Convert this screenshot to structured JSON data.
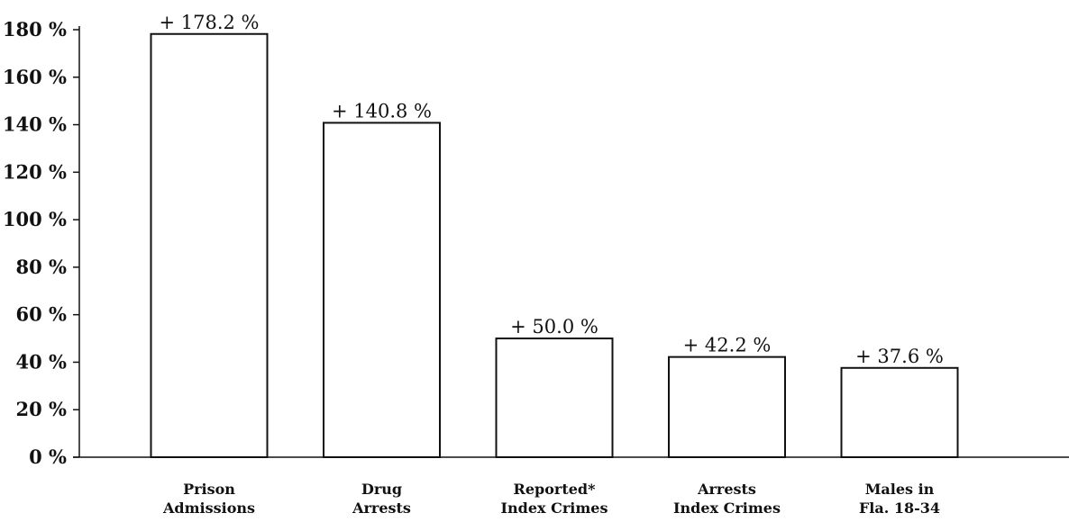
{
  "chart_data": {
    "type": "bar",
    "title": "",
    "xlabel": "",
    "ylabel": "",
    "ylim": [
      0,
      180
    ],
    "y_ticks": [
      0,
      20,
      40,
      60,
      80,
      100,
      120,
      140,
      160,
      180
    ],
    "y_tick_labels": [
      "0 %",
      "20 %",
      "40 %",
      "60 %",
      "80 %",
      "100 %",
      "120 %",
      "140 %",
      "160 %",
      "180 %"
    ],
    "categories": [
      [
        "Prison",
        "Admissions"
      ],
      [
        "Drug",
        "Arrests"
      ],
      [
        "Reported*",
        "Index Crimes"
      ],
      [
        "Arrests",
        "Index Crimes"
      ],
      [
        "Males in",
        "Fla. 18-34"
      ]
    ],
    "values": [
      178.2,
      140.8,
      50.0,
      42.2,
      37.6
    ],
    "data_labels": [
      "+ 178.2 %",
      "+ 140.8 %",
      "+ 50.0 %",
      "+ 42.2 %",
      "+ 37.6 %"
    ],
    "bar_fill": "#ffffff",
    "bar_stroke": "#111111",
    "axis_color": "#111111",
    "grid": false,
    "legend": "none"
  }
}
